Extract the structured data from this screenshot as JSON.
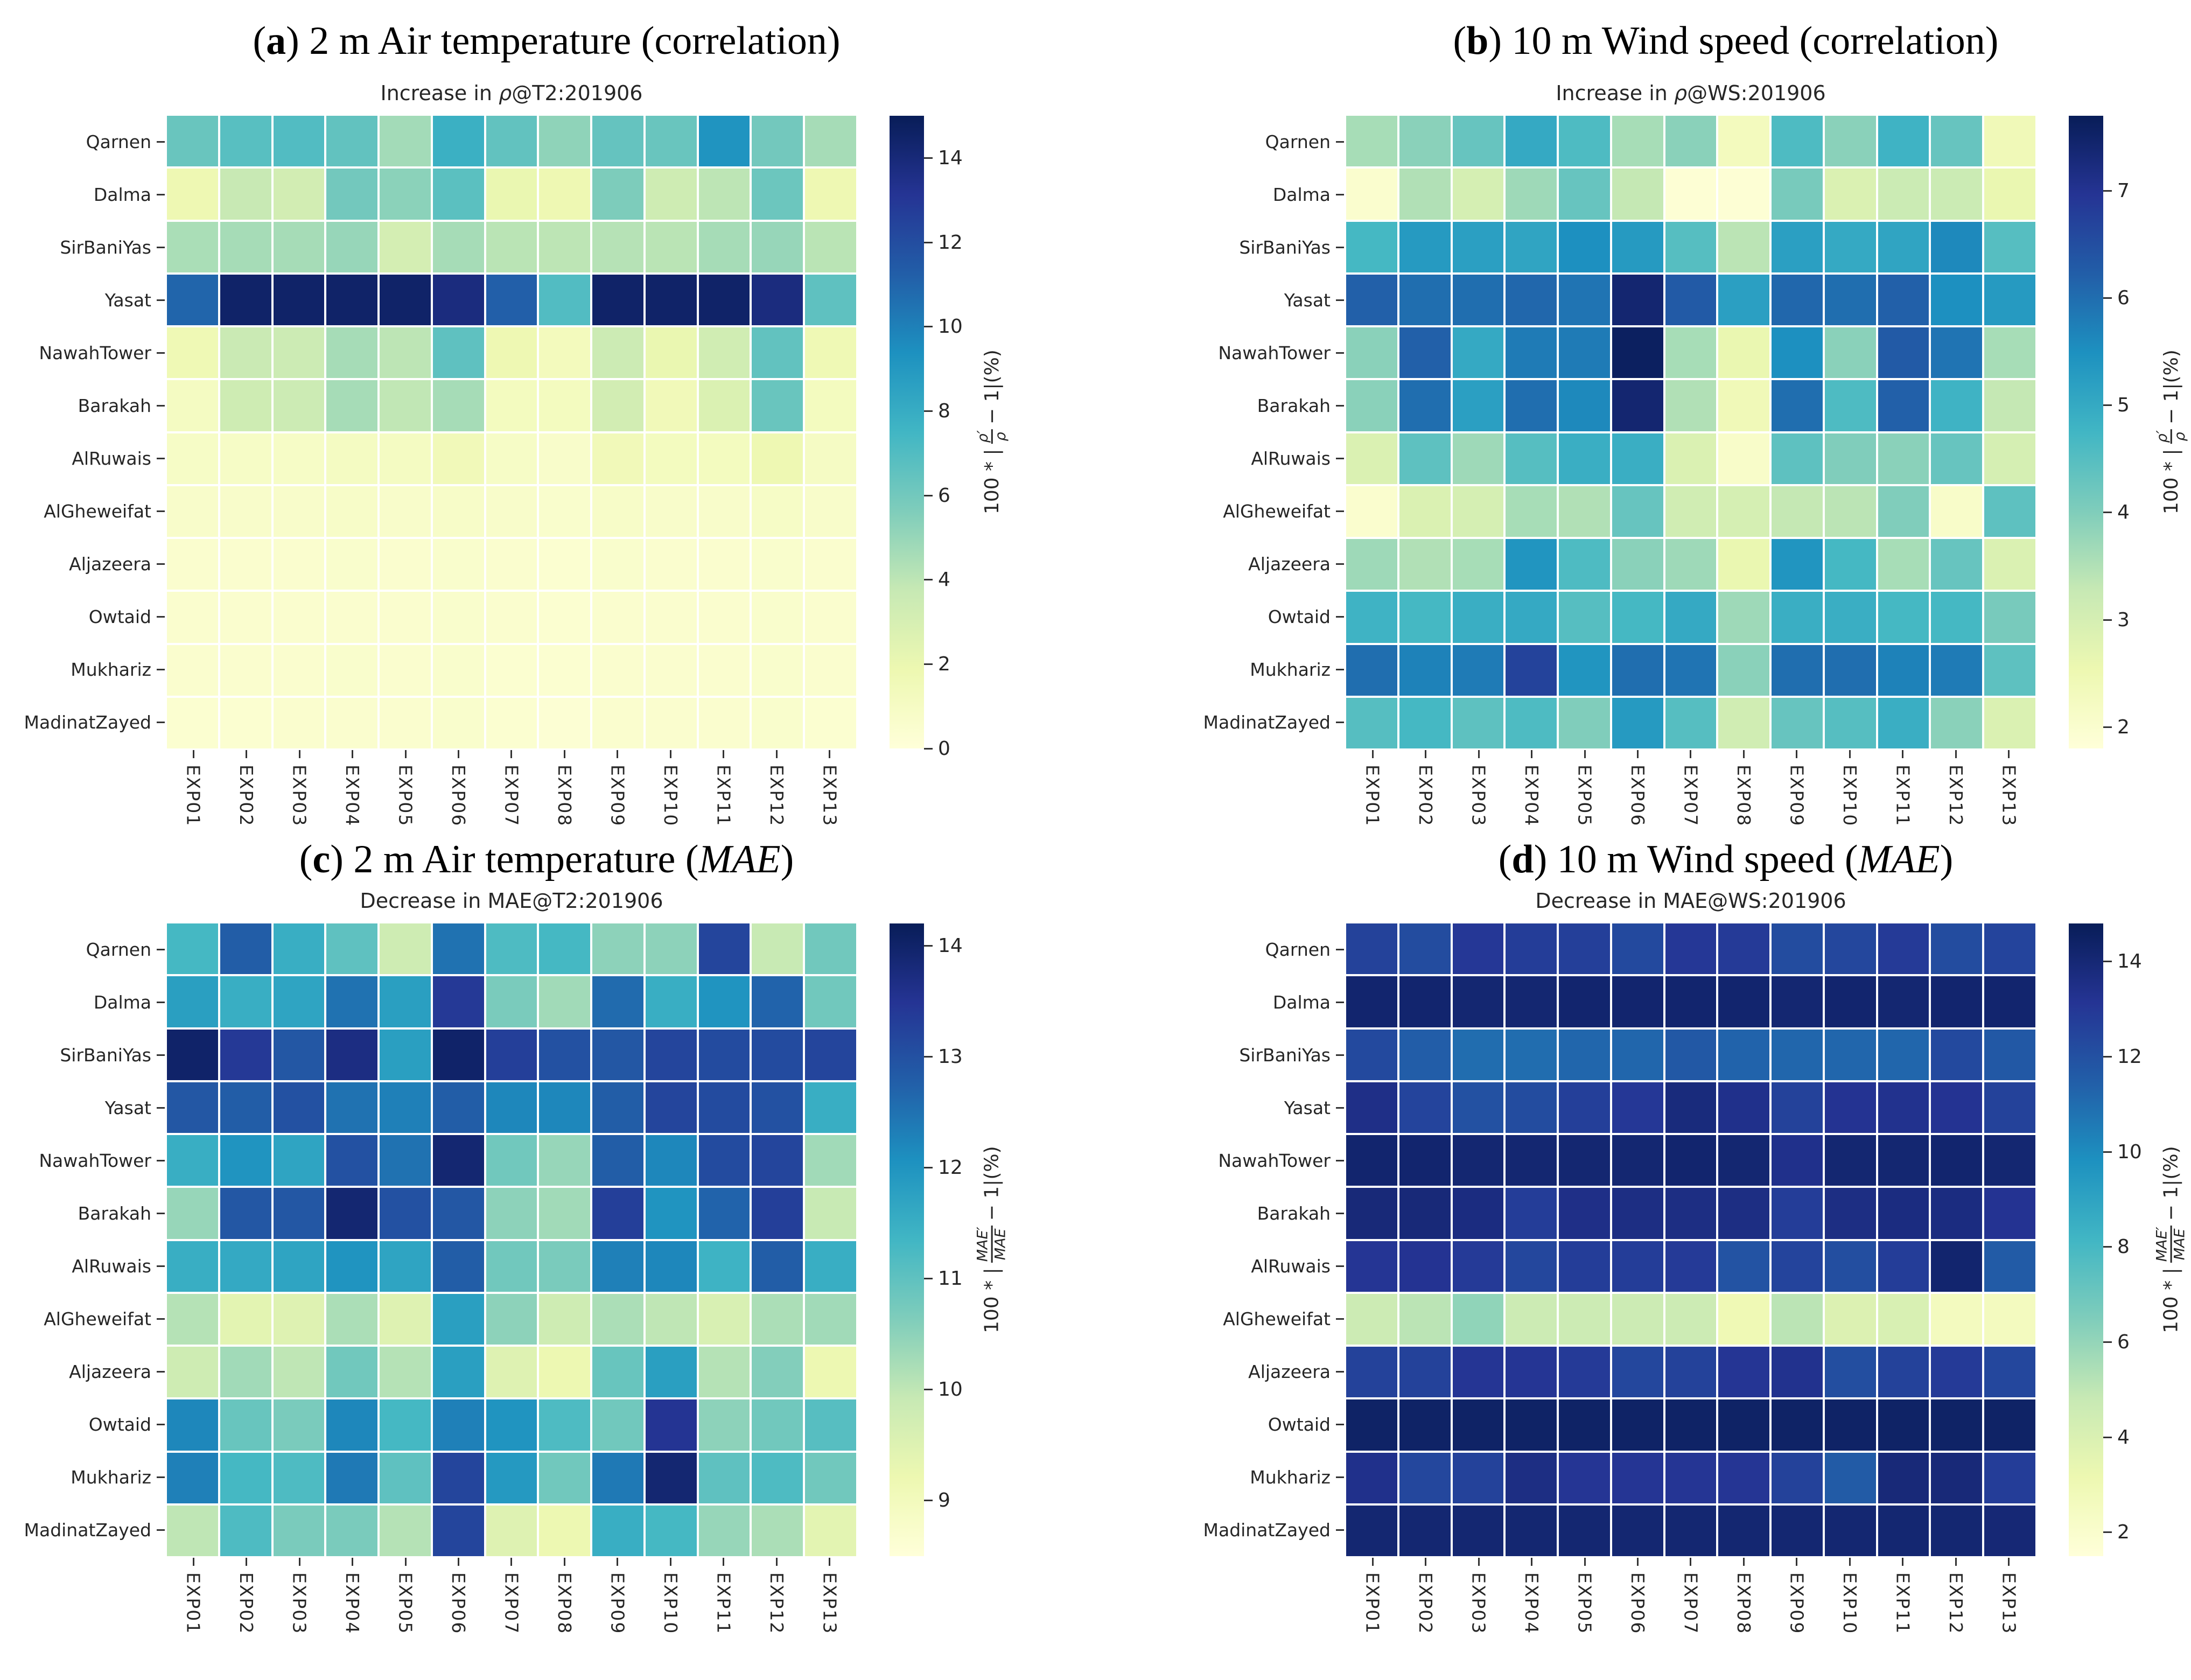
{
  "page": {
    "background": "#ffffff"
  },
  "colors": {
    "colormap_name": "YlGnBu",
    "colormap_stops": [
      "#ffffd9",
      "#edf8b1",
      "#c7e9b4",
      "#7fcdbb",
      "#41b6c4",
      "#1d91c0",
      "#225ea8",
      "#253494",
      "#081d58"
    ],
    "text": "#262626",
    "tick": "#333333"
  },
  "chart_data": [
    {
      "type": "heatmap",
      "panel_letter": "a",
      "title_pre": " 2 m Air temperature (correlation)",
      "title_italic": "",
      "title_post": "",
      "axes_title_pre": "Increase in ",
      "axes_title_italic": "ρ",
      "axes_title_post": "@T2:201906",
      "rows": [
        "Qarnen",
        "Dalma",
        "SirBaniYas",
        "Yasat",
        "NawahTower",
        "Barakah",
        "AlRuwais",
        "AlGheweifat",
        "Aljazeera",
        "Owtaid",
        "Mukhariz",
        "MadinatZayed"
      ],
      "columns": [
        "EXP01",
        "EXP02",
        "EXP03",
        "EXP04",
        "EXP05",
        "EXP06",
        "EXP07",
        "EXP08",
        "EXP09",
        "EXP10",
        "EXP11",
        "EXP12",
        "EXP13"
      ],
      "vmin": 0,
      "vmax": 15,
      "colorbar_ticks": [
        0,
        2,
        4,
        6,
        8,
        10,
        12,
        14
      ],
      "cbar_label_pre": "100 * |",
      "cbar_label_num": "ρ′",
      "cbar_label_den": "ρ",
      "cbar_label_post": "− 1|(%)",
      "values": [
        [
          6.3,
          6.8,
          7.0,
          6.5,
          4.7,
          7.8,
          6.5,
          5.2,
          6.4,
          6.3,
          9.2,
          6.0,
          4.6
        ],
        [
          1.8,
          3.7,
          3.2,
          6.0,
          5.3,
          6.7,
          2.0,
          1.8,
          5.7,
          3.4,
          4.0,
          6.2,
          1.8
        ],
        [
          4.5,
          4.6,
          4.6,
          5.0,
          3.1,
          4.6,
          4.1,
          4.0,
          4.2,
          4.1,
          4.6,
          5.0,
          4.1
        ],
        [
          11.0,
          14.5,
          14.5,
          14.5,
          14.5,
          13.8,
          11.2,
          7.0,
          14.5,
          14.5,
          14.5,
          13.8,
          6.6
        ],
        [
          1.7,
          3.6,
          3.5,
          4.6,
          4.0,
          6.6,
          1.8,
          1.3,
          3.5,
          2.0,
          3.3,
          6.5,
          1.7
        ],
        [
          1.1,
          3.4,
          3.5,
          4.6,
          3.9,
          4.6,
          1.2,
          1.2,
          3.2,
          1.5,
          2.8,
          6.3,
          1.2
        ],
        [
          0.9,
          0.9,
          0.9,
          1.1,
          1.1,
          1.5,
          0.9,
          0.7,
          1.5,
          1.2,
          1.2,
          1.8,
          1.0
        ],
        [
          0.7,
          0.7,
          0.7,
          0.8,
          0.7,
          0.8,
          0.7,
          0.6,
          0.8,
          0.7,
          0.7,
          0.9,
          0.7
        ],
        [
          0.5,
          0.5,
          0.5,
          0.6,
          0.5,
          0.6,
          0.5,
          0.4,
          0.6,
          0.5,
          0.5,
          0.6,
          0.5
        ],
        [
          0.5,
          0.5,
          0.5,
          0.5,
          0.5,
          0.6,
          0.5,
          0.4,
          0.5,
          0.5,
          0.5,
          0.6,
          0.5
        ],
        [
          0.5,
          0.5,
          0.5,
          0.6,
          0.5,
          0.6,
          0.4,
          0.4,
          0.5,
          0.5,
          0.5,
          0.6,
          0.5
        ],
        [
          0.4,
          0.4,
          0.5,
          0.5,
          0.5,
          0.6,
          0.4,
          0.3,
          0.5,
          0.5,
          0.5,
          0.6,
          0.4
        ]
      ]
    },
    {
      "type": "heatmap",
      "panel_letter": "b",
      "title_pre": " 10 m Wind speed (correlation)",
      "title_italic": "",
      "title_post": "",
      "axes_title_pre": "Increase in ",
      "axes_title_italic": "ρ",
      "axes_title_post": "@WS:201906",
      "rows": [
        "Qarnen",
        "Dalma",
        "SirBaniYas",
        "Yasat",
        "NawahTower",
        "Barakah",
        "AlRuwais",
        "AlGheweifat",
        "Aljazeera",
        "Owtaid",
        "Mukhariz",
        "MadinatZayed"
      ],
      "columns": [
        "EXP01",
        "EXP02",
        "EXP03",
        "EXP04",
        "EXP05",
        "EXP06",
        "EXP07",
        "EXP08",
        "EXP09",
        "EXP10",
        "EXP11",
        "EXP12",
        "EXP13"
      ],
      "vmin": 1.8,
      "vmax": 7.7,
      "colorbar_ticks": [
        2,
        3,
        4,
        5,
        6,
        7
      ],
      "cbar_label_pre": "100 * |",
      "cbar_label_num": "ρ′",
      "cbar_label_den": "ρ",
      "cbar_label_post": "− 1|(%)",
      "values": [
        [
          3.6,
          3.9,
          4.3,
          5.0,
          4.6,
          3.6,
          3.9,
          2.3,
          4.6,
          3.9,
          4.8,
          4.3,
          2.4
        ],
        [
          2.0,
          3.5,
          3.0,
          3.7,
          4.3,
          3.3,
          1.9,
          1.9,
          4.1,
          2.9,
          3.2,
          3.2,
          2.6
        ],
        [
          4.7,
          5.3,
          5.2,
          5.1,
          5.5,
          5.3,
          4.5,
          3.4,
          5.2,
          5.0,
          5.1,
          5.6,
          4.5
        ],
        [
          6.2,
          6.0,
          6.0,
          6.1,
          5.9,
          7.4,
          6.3,
          5.2,
          6.1,
          6.0,
          6.2,
          5.5,
          5.3
        ],
        [
          3.9,
          6.2,
          5.0,
          5.8,
          5.8,
          7.6,
          3.6,
          2.6,
          5.5,
          3.9,
          6.3,
          5.9,
          3.6
        ],
        [
          3.9,
          6.0,
          5.2,
          6.0,
          5.6,
          7.4,
          3.5,
          2.4,
          6.0,
          4.6,
          6.2,
          4.8,
          3.3
        ],
        [
          2.9,
          4.4,
          3.7,
          4.5,
          4.9,
          4.9,
          2.9,
          2.1,
          4.4,
          4.0,
          3.9,
          4.3,
          3.0
        ],
        [
          2.0,
          2.9,
          3.0,
          3.6,
          3.5,
          4.3,
          3.1,
          3.0,
          3.3,
          3.4,
          4.0,
          2.1,
          4.4
        ],
        [
          3.7,
          3.5,
          3.6,
          5.4,
          4.6,
          3.9,
          3.7,
          2.6,
          5.4,
          4.7,
          3.6,
          4.3,
          2.9
        ],
        [
          4.8,
          4.7,
          4.9,
          5.0,
          4.5,
          4.7,
          5.0,
          3.7,
          4.9,
          4.9,
          4.7,
          4.7,
          4.1
        ],
        [
          6.0,
          5.7,
          5.8,
          6.7,
          5.4,
          6.0,
          5.9,
          3.9,
          6.0,
          6.0,
          5.7,
          5.8,
          4.4
        ],
        [
          4.5,
          4.7,
          4.4,
          4.6,
          4.0,
          5.3,
          4.5,
          3.1,
          4.3,
          4.5,
          4.9,
          3.9,
          2.9
        ]
      ]
    },
    {
      "type": "heatmap",
      "panel_letter": "c",
      "title_pre": " 2 m Air temperature (",
      "title_italic": "MAE",
      "title_post": ")",
      "axes_title_pre": "Decrease in MAE",
      "axes_title_italic": "",
      "axes_title_post": "@T2:201906",
      "rows": [
        "Qarnen",
        "Dalma",
        "SirBaniYas",
        "Yasat",
        "NawahTower",
        "Barakah",
        "AlRuwais",
        "AlGheweifat",
        "Aljazeera",
        "Owtaid",
        "Mukhariz",
        "MadinatZayed"
      ],
      "columns": [
        "EXP01",
        "EXP02",
        "EXP03",
        "EXP04",
        "EXP05",
        "EXP06",
        "EXP07",
        "EXP08",
        "EXP09",
        "EXP10",
        "EXP11",
        "EXP12",
        "EXP13"
      ],
      "vmin": 8.5,
      "vmax": 14.2,
      "colorbar_ticks": [
        9,
        10,
        11,
        12,
        13,
        14
      ],
      "cbar_label_pre": "100 * |",
      "cbar_label_num": "MAE′",
      "cbar_label_den": "MAE",
      "cbar_label_post": "− 1|(%)",
      "values": [
        [
          11.3,
          12.8,
          11.5,
          11.0,
          9.8,
          12.5,
          11.2,
          11.3,
          10.5,
          10.5,
          13.2,
          9.9,
          10.8
        ],
        [
          11.8,
          11.5,
          11.7,
          12.5,
          11.8,
          13.4,
          10.7,
          10.3,
          12.6,
          11.5,
          12.0,
          12.7,
          10.8
        ],
        [
          14.0,
          13.4,
          12.9,
          13.7,
          11.8,
          14.0,
          13.3,
          13.0,
          12.9,
          13.2,
          13.1,
          13.1,
          13.2
        ],
        [
          12.9,
          12.8,
          13.0,
          12.5,
          12.3,
          12.8,
          12.2,
          12.2,
          12.8,
          13.2,
          13.1,
          13.0,
          11.5
        ],
        [
          11.5,
          12.0,
          11.7,
          13.0,
          12.5,
          13.9,
          10.8,
          10.4,
          12.8,
          12.2,
          13.1,
          13.2,
          10.3
        ],
        [
          10.4,
          12.9,
          12.9,
          13.9,
          13.0,
          12.9,
          10.5,
          10.3,
          13.3,
          12.0,
          12.7,
          13.3,
          9.9
        ],
        [
          11.5,
          11.6,
          11.7,
          12.0,
          11.7,
          12.8,
          10.8,
          10.7,
          12.3,
          12.2,
          11.4,
          12.8,
          11.5
        ],
        [
          10.1,
          9.4,
          9.5,
          10.2,
          9.5,
          11.8,
          10.5,
          9.8,
          10.2,
          10.0,
          9.6,
          10.2,
          10.3
        ],
        [
          9.8,
          10.3,
          10.0,
          10.8,
          10.1,
          11.8,
          9.5,
          9.2,
          10.9,
          11.8,
          10.1,
          10.6,
          9.2
        ],
        [
          12.2,
          10.9,
          10.7,
          12.2,
          11.3,
          12.3,
          12.0,
          11.2,
          10.8,
          13.5,
          10.5,
          10.8,
          11.1
        ],
        [
          12.3,
          11.3,
          11.2,
          12.4,
          11.0,
          13.2,
          11.9,
          10.8,
          12.4,
          13.9,
          11.0,
          11.2,
          10.8
        ],
        [
          10.0,
          11.2,
          10.7,
          10.7,
          10.1,
          13.2,
          9.5,
          9.2,
          11.5,
          11.3,
          10.4,
          10.2,
          9.4
        ]
      ]
    },
    {
      "type": "heatmap",
      "panel_letter": "d",
      "title_pre": " 10 m Wind speed (",
      "title_italic": "MAE",
      "title_post": ")",
      "axes_title_pre": "Decrease in MAE",
      "axes_title_italic": "",
      "axes_title_post": "@WS:201906",
      "rows": [
        "Qarnen",
        "Dalma",
        "SirBaniYas",
        "Yasat",
        "NawahTower",
        "Barakah",
        "AlRuwais",
        "AlGheweifat",
        "Aljazeera",
        "Owtaid",
        "Mukhariz",
        "MadinatZayed"
      ],
      "columns": [
        "EXP01",
        "EXP02",
        "EXP03",
        "EXP04",
        "EXP05",
        "EXP06",
        "EXP07",
        "EXP08",
        "EXP09",
        "EXP10",
        "EXP11",
        "EXP12",
        "EXP13"
      ],
      "vmin": 1.5,
      "vmax": 14.8,
      "colorbar_ticks": [
        2,
        4,
        6,
        8,
        10,
        12,
        14
      ],
      "cbar_label_pre": "100 * |",
      "cbar_label_num": "MAE′",
      "cbar_label_den": "MAE",
      "cbar_label_post": "− 1|(%)",
      "values": [
        [
          12.6,
          12.2,
          13.0,
          12.8,
          12.7,
          12.3,
          13.0,
          12.9,
          12.2,
          12.4,
          12.9,
          12.2,
          12.5
        ],
        [
          14.2,
          14.2,
          14.1,
          14.1,
          14.2,
          14.2,
          14.2,
          14.2,
          14.1,
          14.2,
          14.1,
          14.2,
          14.2
        ],
        [
          12.3,
          11.5,
          11.0,
          11.0,
          11.2,
          11.2,
          11.7,
          11.3,
          11.2,
          11.2,
          11.2,
          12.3,
          11.7
        ],
        [
          13.5,
          12.5,
          12.0,
          12.2,
          12.7,
          13.0,
          13.8,
          13.4,
          12.6,
          13.2,
          13.3,
          13.2,
          12.6
        ],
        [
          14.2,
          14.2,
          14.1,
          14.1,
          14.1,
          14.1,
          14.2,
          14.1,
          13.4,
          14.1,
          14.1,
          14.2,
          14.1
        ],
        [
          13.9,
          13.9,
          13.7,
          12.8,
          13.5,
          13.6,
          13.6,
          13.6,
          12.8,
          13.6,
          13.7,
          13.7,
          13.2
        ],
        [
          13.1,
          13.2,
          12.9,
          12.4,
          12.8,
          12.8,
          12.9,
          11.9,
          12.5,
          12.1,
          12.8,
          14.2,
          11.6
        ],
        [
          4.6,
          5.1,
          6.1,
          4.6,
          4.6,
          4.6,
          4.6,
          3.0,
          5.1,
          3.9,
          4.1,
          2.6,
          2.6
        ],
        [
          12.6,
          12.6,
          13.1,
          13.1,
          12.9,
          12.4,
          12.6,
          13.1,
          13.3,
          12.1,
          12.6,
          12.9,
          12.4
        ],
        [
          14.4,
          14.4,
          14.4,
          14.4,
          14.4,
          14.4,
          14.4,
          14.4,
          14.4,
          14.4,
          14.4,
          14.4,
          14.4
        ],
        [
          13.4,
          12.4,
          12.6,
          13.6,
          13.1,
          13.1,
          13.1,
          13.1,
          12.6,
          11.6,
          13.9,
          13.9,
          12.8
        ],
        [
          14.1,
          14.1,
          14.1,
          14.1,
          14.1,
          14.1,
          14.1,
          14.1,
          14.1,
          14.1,
          14.1,
          14.1,
          14.0
        ]
      ]
    }
  ]
}
